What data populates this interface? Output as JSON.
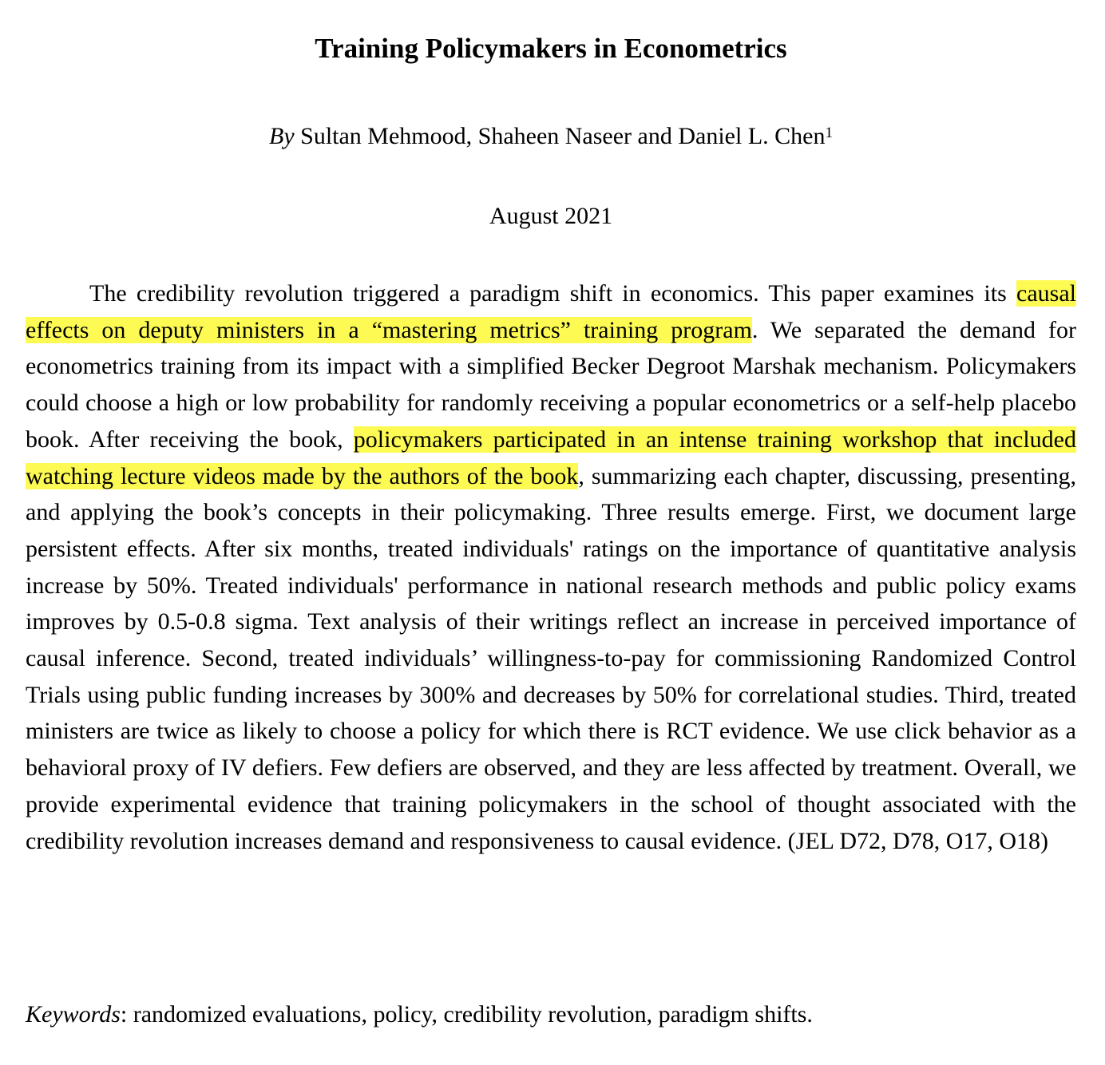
{
  "paper": {
    "title": "Training Policymakers in Econometrics",
    "byline_prefix": "By",
    "authors": "Sultan Mehmood, Shaheen Naseer and Daniel L. Chen",
    "footnote_marker": "1",
    "date": "August 2021"
  },
  "abstract": {
    "part1": "The credibility revolution triggered a paradigm shift in economics. This paper examines its ",
    "highlight1": "causal effects on deputy ministers in a “mastering metrics” training program",
    "part2": ". We separated the demand for econometrics training from its impact with a simplified Becker Degroot Marshak mechanism. Policymakers could choose a high or low probability for randomly receiving a popular econometrics or a self-help placebo book. After receiving the book, ",
    "highlight2": "policymakers participated in an intense training workshop that included watching lecture videos made by the authors of the book",
    "part3": ", summarizing each chapter, discussing, presenting, and applying the book’s concepts in their policymaking. Three results emerge. First, we document large persistent effects. After six months, treated individuals' ratings on the importance of quantitative analysis increase by 50%. Treated individuals' performance in national research methods and public policy exams improves by 0.5-0.8 sigma. Text analysis of their writings reflect an increase in perceived importance of causal inference. Second, treated individuals’ willingness-to-pay for commissioning Randomized Control Trials using public funding increases by 300% and decreases by 50% for correlational studies. Third, treated ministers are twice as likely to choose a policy for which there is RCT evidence. We use click behavior as a behavioral proxy of IV defiers. Few defiers are observed, and they are less affected by treatment. Overall, we provide experimental evidence that training policymakers in the school of thought associated with the credibility revolution increases demand and responsiveness to causal evidence. (JEL D72, D78, O17, O18)"
  },
  "keywords": {
    "label": "Keywords",
    "separator": ": ",
    "text": "randomized evaluations, policy, credibility revolution, paradigm shifts."
  },
  "colors": {
    "highlight": "#fdfb53",
    "text": "#000000",
    "background": "#ffffff"
  }
}
